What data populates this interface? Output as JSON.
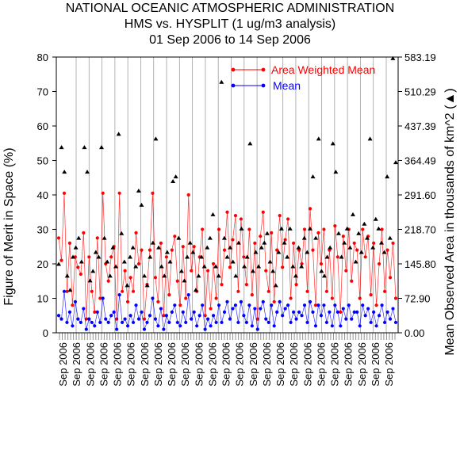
{
  "chart_data": {
    "type": "line",
    "title": "NATIONAL OCEANIC ATMOSPHERIC ADMINISTRATION",
    "subtitle": "HMS vs. HYSPLIT (1 ug/m3 analysis)",
    "date_range": "01 Sep 2006 to 14 Sep 2006",
    "ylabel": "Figure of Merit in Space (%)",
    "y2label": "Mean Observed Area in thousands of km^2 (▲)",
    "ylim": [
      0,
      80
    ],
    "y2lim": [
      0,
      583.19
    ],
    "yticks": [
      "0",
      "10",
      "20",
      "30",
      "40",
      "50",
      "60",
      "70",
      "80"
    ],
    "y2ticks": [
      "0.00",
      "72.90",
      "145.80",
      "218.70",
      "291.60",
      "364.49",
      "437.39",
      "510.29",
      "583.19"
    ],
    "xtick_labels": [
      "Sep 2006",
      "Sep 2006",
      "Sep 2006",
      "Sep 2006",
      "Sep 2006",
      "Sep 2006",
      "Sep 2006",
      "Sep 2006",
      "Sep 2006",
      "Sep 2006",
      "Sep 2006",
      "Sep 2006",
      "Sep 2006",
      "Sep 2006",
      "Sep 2006",
      "Sep 2006",
      "Sep 2006",
      "Sep 2006",
      "Sep 2006",
      "Sep 2006",
      "Sep 2006",
      "Sep 2006",
      "Sep 2006",
      "Sep 2006",
      "Sep 2006"
    ],
    "legend_placement": "top-right",
    "series": [
      {
        "name": "Area Weighted Mean",
        "color": "#ff0000",
        "values": [
          27.5,
          21,
          40.5,
          12,
          26,
          8,
          22,
          19,
          17,
          29,
          4,
          22,
          12,
          6,
          27.5,
          10,
          40.5,
          20,
          15,
          22,
          25,
          4,
          40.5,
          12,
          18,
          9,
          16,
          12,
          29,
          20,
          24,
          4,
          14,
          24,
          40.5,
          16,
          9,
          26,
          5,
          22,
          11,
          24,
          28,
          15,
          8,
          25,
          10,
          40,
          18,
          25,
          12,
          22,
          30,
          5,
          18,
          7,
          20,
          10,
          30,
          14,
          24,
          35,
          19,
          27,
          34,
          12,
          33,
          22,
          14,
          30,
          11,
          26,
          4,
          28,
          35,
          18,
          12,
          29,
          9,
          24,
          34,
          19,
          27,
          33,
          10,
          26,
          14,
          24,
          20,
          30,
          12,
          36,
          24,
          8,
          29,
          20,
          30,
          12,
          24,
          10,
          31,
          22,
          6,
          28,
          18,
          30,
          15,
          26,
          24,
          10,
          30,
          22,
          28,
          11,
          26,
          8,
          20,
          30,
          12,
          24,
          16,
          26,
          10
        ]
      },
      {
        "name": "Mean",
        "color": "#0000ff",
        "values": [
          5,
          4,
          12,
          3,
          6,
          2,
          9,
          4,
          3,
          7,
          1,
          4,
          3,
          2,
          6,
          3,
          10,
          4,
          3,
          5,
          6,
          1,
          11,
          3,
          4,
          2,
          5,
          3,
          8,
          4,
          6,
          1,
          3,
          5,
          10,
          4,
          2,
          7,
          1,
          5,
          3,
          6,
          8,
          3,
          2,
          6,
          3,
          11,
          4,
          6,
          2,
          5,
          8,
          1,
          4,
          2,
          5,
          3,
          8,
          3,
          6,
          9,
          4,
          7,
          8,
          3,
          9,
          5,
          3,
          8,
          2,
          7,
          1,
          7,
          9,
          4,
          3,
          8,
          2,
          6,
          9,
          5,
          7,
          8,
          3,
          6,
          4,
          6,
          5,
          8,
          3,
          9,
          6,
          2,
          8,
          5,
          8,
          3,
          6,
          2,
          8,
          6,
          2,
          7,
          4,
          8,
          4,
          6,
          6,
          2,
          8,
          5,
          7,
          3,
          6,
          2,
          5,
          8,
          3,
          6,
          4,
          7,
          3
        ]
      },
      {
        "name": "Mean Observed Area",
        "axis": "right",
        "color": "#000000",
        "values": [
          145,
          392,
          340,
          120,
          90,
          160,
          180,
          200,
          150,
          392,
          340,
          110,
          130,
          170,
          160,
          392,
          200,
          150,
          120,
          180,
          140,
          420,
          210,
          150,
          100,
          160,
          180,
          140,
          300,
          270,
          120,
          100,
          160,
          190,
          410,
          180,
          140,
          120,
          170,
          150,
          320,
          330,
          200,
          130,
          110,
          160,
          190,
          170,
          90,
          120,
          160,
          140,
          180,
          200,
          250,
          140,
          120,
          530,
          200,
          160,
          180,
          150,
          120,
          190,
          220,
          140,
          160,
          400,
          130,
          170,
          140,
          180,
          190,
          210,
          150,
          130,
          100,
          170,
          220,
          190,
          160,
          220,
          140,
          120,
          180,
          140,
          200,
          170,
          220,
          330,
          200,
          410,
          130,
          120,
          160,
          180,
          400,
          340,
          210,
          160,
          190,
          220,
          180,
          250,
          150,
          210,
          170,
          230,
          200,
          410,
          180,
          240,
          220,
          190,
          170,
          330,
          200,
          580,
          360
        ]
      }
    ]
  }
}
